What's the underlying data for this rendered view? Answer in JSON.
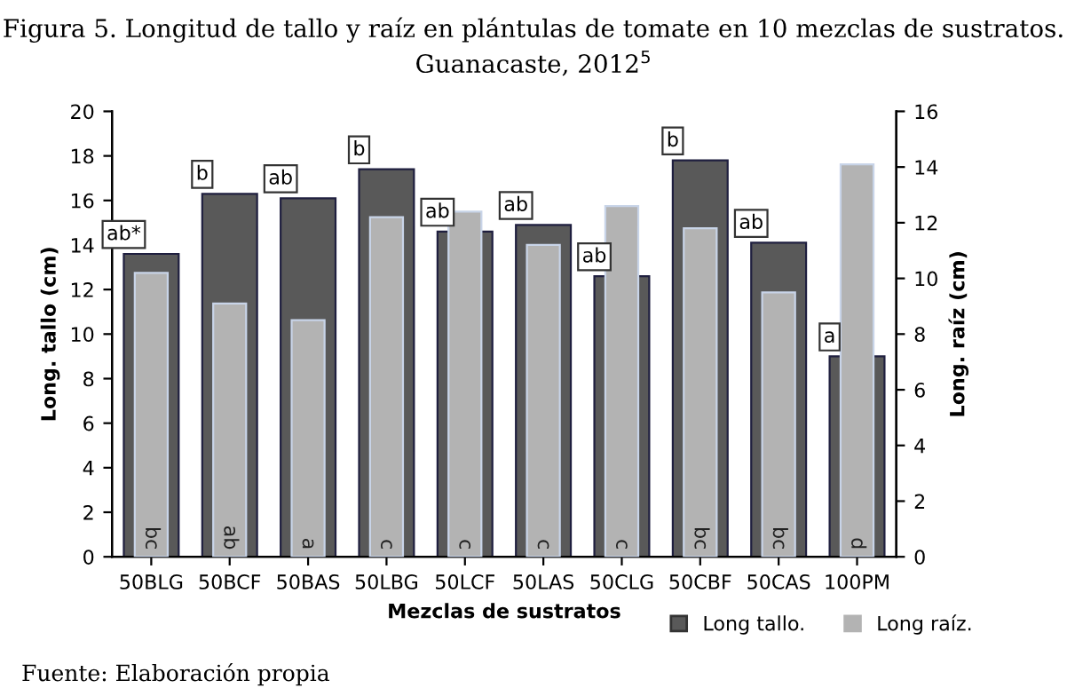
{
  "chart_data": {
    "type": "bar",
    "title": "Figura 5. Longitud de tallo y raíz en plántulas de tomate en 10 mezclas de sustratos.",
    "subtitle": "Guanacaste, 2012$^{5}$",
    "xlabel": "Mezclas de sustratos",
    "ylabel": "Long. tallo (cm)",
    "y2label": "Long. raíz (cm)",
    "categories": [
      "50BLG",
      "50BCF",
      "50BAS",
      "50LBG",
      "50LCF",
      "50LAS",
      "50CLG",
      "50CBF",
      "50CAS",
      "100PM"
    ],
    "series": [
      {
        "name": "Long tallo.",
        "color": "#595959",
        "values": [
          13.6,
          16.3,
          16.1,
          17.4,
          14.6,
          14.9,
          12.6,
          17.8,
          14.1,
          9.0
        ],
        "value_labels": [
          "ab*",
          "b",
          "ab",
          "b",
          "ab",
          "ab",
          "ab",
          "b",
          "ab",
          "a"
        ]
      },
      {
        "name": "Long raíz.",
        "color": "#b3b3b3",
        "axis": "y2",
        "values": [
          10.2,
          9.1,
          8.5,
          12.2,
          12.4,
          11.2,
          12.6,
          11.8,
          9.5,
          14.1
        ],
        "value_labels": [
          "bc",
          "ab",
          "a",
          "c",
          "c",
          "c",
          "c",
          "bc",
          "bc",
          "d"
        ]
      }
    ],
    "ylim": [
      0,
      20
    ],
    "yticks": [
      0,
      2,
      4,
      6,
      8,
      10,
      12,
      14,
      16,
      18,
      20
    ],
    "y2lim": [
      0,
      16
    ],
    "y2ticks": [
      0,
      2,
      4,
      6,
      8,
      10,
      12,
      14,
      16
    ],
    "grid": false,
    "legend": "bottom right",
    "annotations": [
      "Fuente: Elaboración propia"
    ]
  }
}
